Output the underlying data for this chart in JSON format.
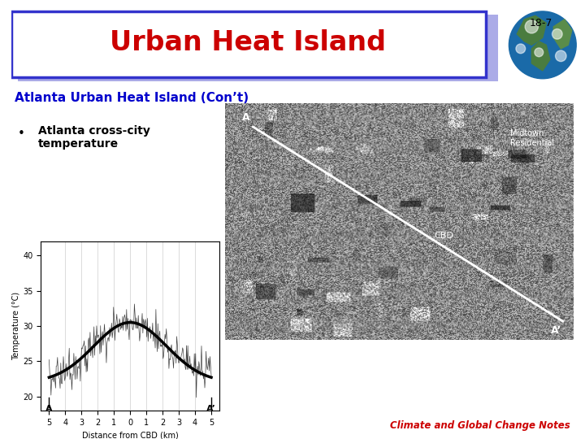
{
  "title": "Urban Heat Island",
  "slide_number": "18-7",
  "subtitle": "Atlanta Urban Heat Island (Con’t)",
  "bullet": "Atlanta cross-city\ntemperature",
  "footer": "Climate and Global Change Notes",
  "title_color": "#cc0000",
  "subtitle_color": "#0000cc",
  "footer_color": "#cc0000",
  "bg_color": "#ffffff",
  "box_border_color": "#3333cc",
  "box_shadow_color": "#8888dd",
  "xlabel": "Distance from CBD (km)",
  "ylabel": "Temperature (°C)",
  "x_ticks": [
    -5,
    -4,
    -3,
    -2,
    -1,
    0,
    1,
    2,
    3,
    4,
    5
  ],
  "x_tick_labels": [
    "5",
    "4",
    "3",
    "2",
    "1",
    "0",
    "1",
    "2",
    "3",
    "4",
    "5"
  ],
  "y_ticks": [
    20,
    25,
    30,
    35,
    40
  ],
  "ylim": [
    18,
    42
  ],
  "xlim": [
    -5.5,
    5.5
  ],
  "map_label_cbd": "CBD",
  "map_label_midtown": "Midtown\nResidential",
  "map_label_a": "A",
  "map_label_aprime": "A’"
}
